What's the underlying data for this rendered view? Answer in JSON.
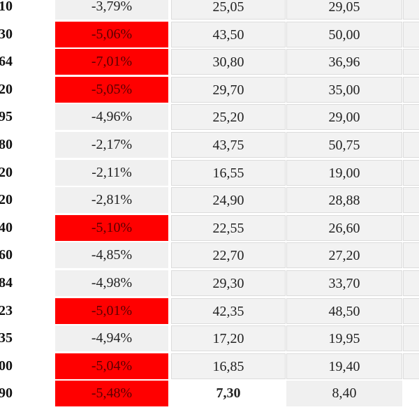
{
  "rows": [
    {
      "code": "10",
      "pct": "-3,79%",
      "highlight": false,
      "a": "25,05",
      "b": "29,05"
    },
    {
      "code": "30",
      "pct": "-5,06%",
      "highlight": true,
      "a": "43,50",
      "b": "50,00"
    },
    {
      "code": "64",
      "pct": "-7,01%",
      "highlight": true,
      "a": "30,80",
      "b": "36,96"
    },
    {
      "code": "20",
      "pct": "-5,05%",
      "highlight": true,
      "a": "29,70",
      "b": "35,00"
    },
    {
      "code": "95",
      "pct": "-4,96%",
      "highlight": false,
      "a": "25,20",
      "b": "29,00"
    },
    {
      "code": "80",
      "pct": "-2,17%",
      "highlight": false,
      "a": "43,75",
      "b": "50,75"
    },
    {
      "code": "20",
      "pct": "-2,11%",
      "highlight": false,
      "a": "16,55",
      "b": "19,00"
    },
    {
      "code": "20",
      "pct": "-2,81%",
      "highlight": false,
      "a": "24,90",
      "b": "28,88"
    },
    {
      "code": "40",
      "pct": "-5,10%",
      "highlight": true,
      "a": "22,55",
      "b": "26,60"
    },
    {
      "code": "60",
      "pct": "-4,85%",
      "highlight": false,
      "a": "22,70",
      "b": "27,20"
    },
    {
      "code": "84",
      "pct": "-4,98%",
      "highlight": false,
      "a": "29,30",
      "b": "33,70"
    },
    {
      "code": "23",
      "pct": "-5,01%",
      "highlight": true,
      "a": "42,35",
      "b": "48,50"
    },
    {
      "code": "35",
      "pct": "-4,94%",
      "highlight": false,
      "a": "17,20",
      "b": "19,95"
    },
    {
      "code": "00",
      "pct": "-5,04%",
      "highlight": true,
      "a": "16,85",
      "b": "19,40"
    },
    {
      "code": "90",
      "pct": "-5,48%",
      "highlight": true,
      "a": "7,30",
      "b": "8,40"
    }
  ],
  "colors": {
    "highlight_bg": "#ff0000",
    "highlight_text": "#5a0000",
    "cell_bg": "#f2f2f2"
  }
}
